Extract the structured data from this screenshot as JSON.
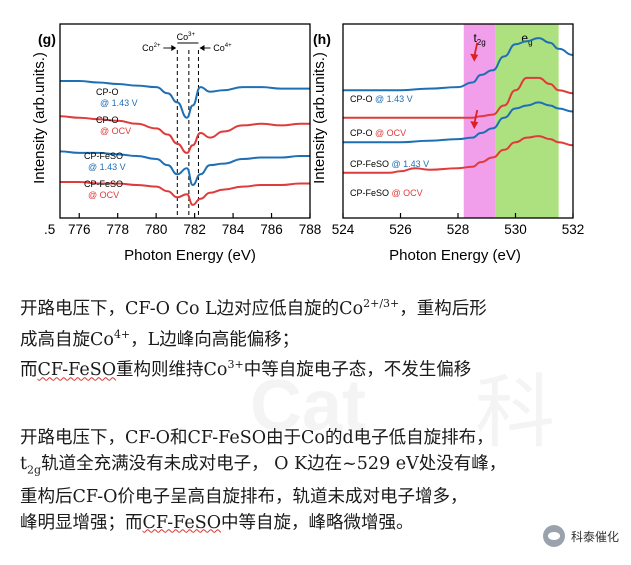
{
  "watermark": {
    "latin": "Cat",
    "cn": "科"
  },
  "chart_data": [
    {
      "type": "line",
      "panel": "(g)",
      "xlabel": "Photon Energy (eV)",
      "ylabel": "Intensity (arb.units.)",
      "xlim": [
        775,
        788
      ],
      "ticks": [
        776,
        778,
        780,
        782,
        784,
        786,
        788
      ],
      "edge_tick_label": ".5",
      "annotations": [
        {
          "label": "Co2+",
          "x": 781.1
        },
        {
          "label": "Co3+",
          "x": 781.7
        },
        {
          "label": "Co4+",
          "x": 782.2
        }
      ],
      "series": [
        {
          "name": "CP-O",
          "condition": "@ 1.43 V",
          "color": "#1f6fb5",
          "x": [
            775.0,
            776.0,
            777.0,
            778.0,
            779.0,
            780.0,
            780.6,
            781.1,
            781.6,
            781.9,
            782.3,
            782.8,
            783.5,
            784.5,
            785.5,
            786.5,
            787.5,
            788.0
          ],
          "y": [
            0.78,
            0.78,
            0.77,
            0.76,
            0.75,
            0.74,
            0.7,
            0.64,
            0.54,
            0.62,
            0.74,
            0.71,
            0.72,
            0.74,
            0.74,
            0.73,
            0.73,
            0.73
          ]
        },
        {
          "name": "CP-O",
          "condition": "@ OCV",
          "color": "#e03a3a",
          "x": [
            775.0,
            776.0,
            777.0,
            778.0,
            779.0,
            780.0,
            780.6,
            781.1,
            781.6,
            781.9,
            782.3,
            782.8,
            783.5,
            784.5,
            785.5,
            786.5,
            787.5,
            788.0
          ],
          "y": [
            0.55,
            0.54,
            0.53,
            0.52,
            0.5,
            0.47,
            0.43,
            0.37,
            0.31,
            0.36,
            0.44,
            0.41,
            0.45,
            0.49,
            0.5,
            0.49,
            0.5,
            0.5
          ]
        },
        {
          "name": "CP-FeSO",
          "condition": "@ 1.43 V",
          "color": "#1f6fb5",
          "x": [
            775.0,
            776.0,
            777.0,
            778.0,
            779.0,
            780.0,
            780.6,
            781.1,
            781.6,
            781.9,
            782.3,
            782.8,
            783.5,
            784.5,
            785.5,
            786.5,
            787.5,
            788.0
          ],
          "y": [
            0.32,
            0.31,
            0.31,
            0.3,
            0.29,
            0.27,
            0.23,
            0.17,
            0.21,
            0.1,
            0.17,
            0.23,
            0.24,
            0.27,
            0.28,
            0.28,
            0.29,
            0.29
          ]
        },
        {
          "name": "CP-FeSO",
          "condition": "@ OCV",
          "color": "#e03a3a",
          "x": [
            775.0,
            776.0,
            777.0,
            778.0,
            779.0,
            780.0,
            780.6,
            781.1,
            781.6,
            781.9,
            782.3,
            782.8,
            783.5,
            784.5,
            785.5,
            786.5,
            787.5,
            788.0
          ],
          "y": [
            0.12,
            0.12,
            0.11,
            0.11,
            0.1,
            0.09,
            0.06,
            0.02,
            0.04,
            -0.03,
            0.01,
            0.05,
            0.07,
            0.09,
            0.1,
            0.1,
            0.11,
            0.11
          ]
        }
      ]
    },
    {
      "type": "line",
      "panel": "(h)",
      "xlabel": "Photon Energy (eV)",
      "ylabel": "Intensity (arb.units.)",
      "xlim": [
        524,
        532
      ],
      "ticks": [
        524,
        526,
        528,
        530,
        532
      ],
      "bands": [
        {
          "label": "t2g",
          "main": "t",
          "sub": "2g",
          "from": 528.2,
          "to": 529.3,
          "color": "#f08ee8"
        },
        {
          "label": "eg",
          "main": "e",
          "sub": "g",
          "from": 529.3,
          "to": 531.5,
          "color": "#9fdc6a"
        }
      ],
      "arrows_at": [
        528.6,
        528.6
      ],
      "series": [
        {
          "name": "CP-O",
          "condition": "@ 1.43 V",
          "color": "#1f6fb5",
          "x": [
            524.0,
            525.0,
            526.0,
            527.0,
            528.0,
            528.5,
            528.8,
            529.2,
            529.6,
            530.0,
            530.4,
            530.8,
            531.2,
            531.5,
            532.0
          ],
          "y": [
            0.72,
            0.72,
            0.72,
            0.73,
            0.74,
            0.77,
            0.82,
            0.85,
            0.94,
            1.02,
            1.04,
            1.06,
            1.03,
            0.99,
            0.95
          ]
        },
        {
          "name": "CP-O",
          "condition": "@ OCV",
          "color": "#e03a3a",
          "x": [
            524.0,
            525.0,
            526.0,
            527.0,
            528.0,
            528.5,
            528.8,
            529.2,
            529.6,
            530.0,
            530.4,
            530.8,
            531.2,
            531.5,
            532.0
          ],
          "y": [
            0.54,
            0.54,
            0.54,
            0.54,
            0.54,
            0.54,
            0.55,
            0.56,
            0.62,
            0.72,
            0.8,
            0.8,
            0.76,
            0.72,
            0.7
          ]
        },
        {
          "name": "CP-FeSO",
          "condition": "@ 1.43 V",
          "color": "#1f6fb5",
          "x": [
            524.0,
            525.0,
            526.0,
            527.0,
            528.0,
            528.5,
            528.8,
            529.2,
            529.6,
            530.0,
            530.4,
            530.8,
            531.2,
            531.5,
            532.0
          ],
          "y": [
            0.38,
            0.38,
            0.38,
            0.39,
            0.4,
            0.41,
            0.44,
            0.47,
            0.54,
            0.6,
            0.62,
            0.64,
            0.62,
            0.6,
            0.58
          ]
        },
        {
          "name": "CP-FeSO",
          "condition": "@ OCV",
          "color": "#e03a3a",
          "x": [
            524.0,
            525.0,
            525.6,
            526.0,
            526.5,
            527.0,
            528.0,
            528.5,
            528.8,
            529.2,
            529.6,
            530.0,
            530.4,
            530.8,
            531.2,
            531.5,
            532.0
          ],
          "y": [
            0.18,
            0.18,
            0.18,
            0.19,
            0.21,
            0.2,
            0.21,
            0.22,
            0.25,
            0.28,
            0.33,
            0.38,
            0.41,
            0.42,
            0.4,
            0.38,
            0.36
          ]
        }
      ]
    }
  ],
  "caption": {
    "p1": {
      "l1_a": "开路电压下，CF-O Co L边对应低自旋的Co",
      "l1_sup": "2+/3+",
      "l1_b": "，重构后形",
      "l2_a": "成高自旋Co",
      "l2_sup": "4+",
      "l2_b": "，L边峰向高能偏移；",
      "l3_a": "而",
      "l3_sq": "CF-FeSO",
      "l3_b": "重构则维持Co",
      "l3_sup": "3+",
      "l3_c": "中等自旋电子态，不发生偏移"
    },
    "p2": {
      "l1": "开路电压下，CF-O和CF-FeSO由于Co的d电子低自旋排布，",
      "l2_t": "t",
      "l2_sub": "2g",
      "l2_rest": "轨道全充满没有未成对电子， O K边在~529 eV处没有峰，",
      "l3": "重构后CF-O价电子呈高自旋排布，轨道未成对电子增多，",
      "l4_a": "峰明显增强；而",
      "l4_sq": "CF-FeSO",
      "l4_b": "中等自旋，峰略微增强。"
    }
  },
  "logo": {
    "text": "科泰催化",
    "icon": "wechat-icon"
  }
}
